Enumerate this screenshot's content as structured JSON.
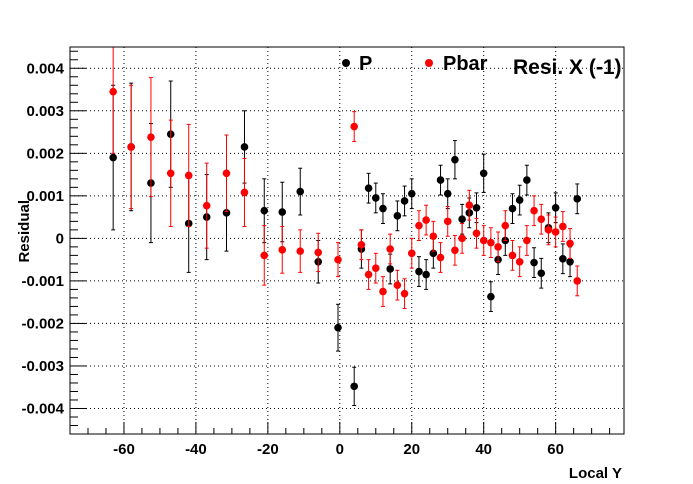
{
  "chart_data": {
    "type": "scatter",
    "title": "Resi. X (-1)",
    "xlabel": "Local Y",
    "ylabel": "Residual",
    "xlim": [
      -75,
      79
    ],
    "ylim": [
      -0.0046,
      0.0045
    ],
    "grid": true,
    "legend_placement": "top",
    "x_ticks": [
      -60,
      -40,
      -20,
      0,
      20,
      40,
      60
    ],
    "x_tick_labels": [
      "-60",
      "-40",
      "-20",
      "0",
      "20",
      "40",
      "60"
    ],
    "y_ticks": [
      -0.004,
      -0.003,
      -0.002,
      -0.001,
      0,
      0.001,
      0.002,
      0.003,
      0.004
    ],
    "y_tick_labels": [
      "-0.004",
      "-0.003",
      "-0.002",
      "-0.001",
      "0",
      "0.001",
      "0.002",
      "0.003",
      "0.004"
    ],
    "series": [
      {
        "name": "P",
        "color": "#000000",
        "points": [
          {
            "x": -63,
            "y": 0.0019,
            "err": 0.0017
          },
          {
            "x": -58,
            "y": 0.00215,
            "err": 0.0015
          },
          {
            "x": -52.5,
            "y": 0.0013,
            "err": 0.0014
          },
          {
            "x": -47,
            "y": 0.00245,
            "err": 0.00125
          },
          {
            "x": -42,
            "y": 0.00035,
            "err": 0.00115
          },
          {
            "x": -37,
            "y": 0.0005,
            "err": 0.001
          },
          {
            "x": -31.5,
            "y": 0.0006,
            "err": 0.0009
          },
          {
            "x": -26.5,
            "y": 0.00215,
            "err": 0.00085
          },
          {
            "x": -21,
            "y": 0.00065,
            "err": 0.00075
          },
          {
            "x": -16,
            "y": 0.00062,
            "err": 0.0007
          },
          {
            "x": -11,
            "y": 0.0011,
            "err": 0.00055
          },
          {
            "x": -6,
            "y": -0.00055,
            "err": 0.0005
          },
          {
            "x": -0.5,
            "y": -0.0021,
            "err": 0.00055
          },
          {
            "x": 4,
            "y": -0.00348,
            "err": 0.00045
          },
          {
            "x": 6,
            "y": -0.00025,
            "err": 0.00045
          },
          {
            "x": 8,
            "y": 0.00118,
            "err": 0.00035
          },
          {
            "x": 10,
            "y": 0.00095,
            "err": 0.00035
          },
          {
            "x": 12,
            "y": 0.0007,
            "err": 0.00035
          },
          {
            "x": 14,
            "y": -0.00072,
            "err": 0.00035
          },
          {
            "x": 16,
            "y": 0.00053,
            "err": 0.00035
          },
          {
            "x": 18,
            "y": 0.00088,
            "err": 0.00035
          },
          {
            "x": 20,
            "y": 0.00105,
            "err": 0.00035
          },
          {
            "x": 22,
            "y": -0.00078,
            "err": 0.00035
          },
          {
            "x": 24,
            "y": -0.00085,
            "err": 0.00035
          },
          {
            "x": 26,
            "y": -0.00035,
            "err": 0.00035
          },
          {
            "x": 28,
            "y": 0.00137,
            "err": 0.00035
          },
          {
            "x": 30,
            "y": 0.00105,
            "err": 0.00035
          },
          {
            "x": 32,
            "y": 0.00185,
            "err": 0.00045
          },
          {
            "x": 34,
            "y": 0.00045,
            "err": 0.00035
          },
          {
            "x": 36,
            "y": 0.0006,
            "err": 0.00035
          },
          {
            "x": 38,
            "y": 0.00072,
            "err": 0.00035
          },
          {
            "x": 40,
            "y": 0.00153,
            "err": 0.00045
          },
          {
            "x": 42,
            "y": -0.00137,
            "err": 0.00035
          },
          {
            "x": 44,
            "y": -0.0005,
            "err": 0.00035
          },
          {
            "x": 46,
            "y": -5e-05,
            "err": 0.00035
          },
          {
            "x": 48,
            "y": 0.0007,
            "err": 0.00035
          },
          {
            "x": 50,
            "y": 0.0009,
            "err": 0.00035
          },
          {
            "x": 52,
            "y": 0.00137,
            "err": 0.00035
          },
          {
            "x": 54,
            "y": -0.00057,
            "err": 0.00035
          },
          {
            "x": 56,
            "y": -0.00082,
            "err": 0.00035
          },
          {
            "x": 58,
            "y": 0.00025,
            "err": 0.00035
          },
          {
            "x": 60,
            "y": 0.00072,
            "err": 0.00035
          },
          {
            "x": 62,
            "y": -0.00048,
            "err": 0.00035
          },
          {
            "x": 64,
            "y": -0.00055,
            "err": 0.00035
          },
          {
            "x": 66,
            "y": 0.00093,
            "err": 0.00035
          }
        ]
      },
      {
        "name": "Pbar",
        "color": "#ff0000",
        "points": [
          {
            "x": -63,
            "y": 0.00345,
            "err": 0.00145
          },
          {
            "x": -58,
            "y": 0.00215,
            "err": 0.00145
          },
          {
            "x": -52.5,
            "y": 0.00238,
            "err": 0.0014
          },
          {
            "x": -47,
            "y": 0.00153,
            "err": 0.00125
          },
          {
            "x": -42,
            "y": 0.00148,
            "err": 0.0012
          },
          {
            "x": -37,
            "y": 0.00077,
            "err": 0.001
          },
          {
            "x": -31.5,
            "y": 0.00153,
            "err": 0.0009
          },
          {
            "x": -26.5,
            "y": 0.00108,
            "err": 0.0008
          },
          {
            "x": -21,
            "y": -0.0004,
            "err": 0.0007
          },
          {
            "x": -16,
            "y": -0.00027,
            "err": 0.00055
          },
          {
            "x": -11,
            "y": -0.0003,
            "err": 0.0005
          },
          {
            "x": -6,
            "y": -0.00033,
            "err": 0.00045
          },
          {
            "x": -0.5,
            "y": -0.0005,
            "err": 0.0004
          },
          {
            "x": 4,
            "y": 0.00263,
            "err": 0.00035
          },
          {
            "x": 6,
            "y": -0.00015,
            "err": 0.00035
          },
          {
            "x": 8,
            "y": -0.00085,
            "err": 0.00035
          },
          {
            "x": 10,
            "y": -0.0007,
            "err": 0.00035
          },
          {
            "x": 12,
            "y": -0.00125,
            "err": 0.00035
          },
          {
            "x": 14,
            "y": -0.00025,
            "err": 0.00035
          },
          {
            "x": 16,
            "y": -0.0011,
            "err": 0.00035
          },
          {
            "x": 18,
            "y": -0.0013,
            "err": 0.00035
          },
          {
            "x": 20,
            "y": -0.00035,
            "err": 0.00035
          },
          {
            "x": 22,
            "y": 0.0003,
            "err": 0.00035
          },
          {
            "x": 24,
            "y": 0.00043,
            "err": 0.00035
          },
          {
            "x": 26,
            "y": 5e-05,
            "err": 0.00035
          },
          {
            "x": 28,
            "y": -0.00045,
            "err": 0.00035
          },
          {
            "x": 30,
            "y": 0.0004,
            "err": 0.00035
          },
          {
            "x": 32,
            "y": -0.00028,
            "err": 0.00035
          },
          {
            "x": 34,
            "y": 0.0,
            "err": 0.00035
          },
          {
            "x": 36,
            "y": 0.00078,
            "err": 0.00035
          },
          {
            "x": 38,
            "y": 0.00012,
            "err": 0.00035
          },
          {
            "x": 40,
            "y": -5e-05,
            "err": 0.00035
          },
          {
            "x": 42,
            "y": -0.0001,
            "err": 0.00035
          },
          {
            "x": 44,
            "y": -0.0002,
            "err": 0.00035
          },
          {
            "x": 46,
            "y": 0.0003,
            "err": 0.00035
          },
          {
            "x": 48,
            "y": -0.0004,
            "err": 0.00035
          },
          {
            "x": 50,
            "y": -0.00055,
            "err": 0.00035
          },
          {
            "x": 52,
            "y": -5e-05,
            "err": 0.00035
          },
          {
            "x": 54,
            "y": 0.00065,
            "err": 0.00035
          },
          {
            "x": 56,
            "y": 0.00045,
            "err": 0.00035
          },
          {
            "x": 58,
            "y": 0.0002,
            "err": 0.00035
          },
          {
            "x": 60,
            "y": 0.00015,
            "err": 0.00035
          },
          {
            "x": 62,
            "y": 0.00028,
            "err": 0.00035
          },
          {
            "x": 64,
            "y": -0.00012,
            "err": 0.00035
          },
          {
            "x": 66,
            "y": -0.001,
            "err": 0.00035
          }
        ]
      }
    ]
  }
}
